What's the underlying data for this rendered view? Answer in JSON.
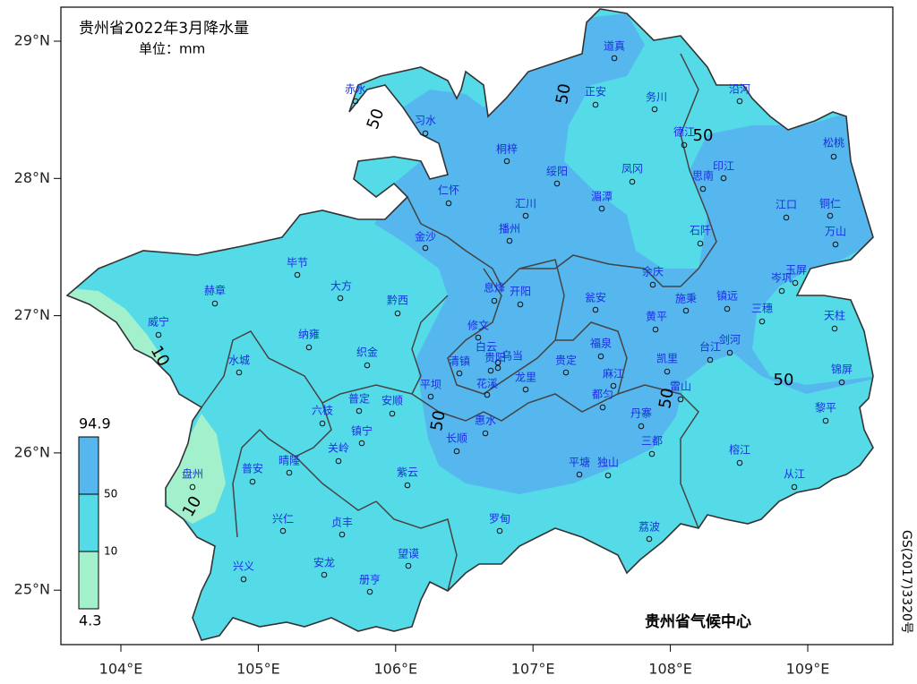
{
  "map": {
    "title": "贵州省2022年3月降水量",
    "unit": "单位：mm",
    "xticks": [
      {
        "value": 104,
        "label": "104°E"
      },
      {
        "value": 105,
        "label": "105°E"
      },
      {
        "value": 106,
        "label": "106°E"
      },
      {
        "value": 107,
        "label": "107°E"
      },
      {
        "value": 108,
        "label": "108°E"
      },
      {
        "value": 109,
        "label": "109°E"
      }
    ],
    "yticks": [
      {
        "value": 29,
        "label": "29°N"
      },
      {
        "value": 28,
        "label": "28°N"
      },
      {
        "value": 27,
        "label": "27°N"
      },
      {
        "value": 26,
        "label": "26°N"
      },
      {
        "value": 25,
        "label": "25°N"
      }
    ],
    "legend": {
      "levels": [
        94.9,
        50,
        10,
        4.3
      ],
      "colors": [
        "#56b6ee",
        "#55dbe8",
        "#a2f0cc"
      ]
    },
    "contour_labels": [
      50,
      50,
      50,
      50,
      50,
      50,
      10,
      10
    ],
    "stations": [
      "赤水",
      "习水",
      "桐梓",
      "道真",
      "正安",
      "务川",
      "沿河",
      "德江",
      "松桃",
      "印江",
      "思南",
      "凤冈",
      "绥阳",
      "湄潭",
      "仁怀",
      "汇川",
      "江口",
      "铜仁",
      "石阡",
      "万山",
      "播州",
      "金沙",
      "毕节",
      "大方",
      "赫章",
      "黔西",
      "息烽",
      "开阳",
      "余庆",
      "岑巩",
      "玉屏",
      "瓮安",
      "镇远",
      "施秉",
      "三穗",
      "黄平",
      "天柱",
      "威宁",
      "纳雍",
      "修文",
      "白云",
      "乌当",
      "织金",
      "福泉",
      "台江",
      "剑河",
      "清镇",
      "贵阳",
      "贵定",
      "凯里",
      "锦屏",
      "水城",
      "花溪",
      "龙里",
      "麻江",
      "雷山",
      "平坝",
      "都匀",
      "普定",
      "安顺",
      "六枝",
      "丹寨",
      "黎平",
      "惠水",
      "镇宁",
      "长顺",
      "关岭",
      "三都",
      "晴隆",
      "普安",
      "盘州",
      "紫云",
      "平塘",
      "独山",
      "榕江",
      "从江",
      "兴仁",
      "贞丰",
      "罗甸",
      "荔波",
      "望谟",
      "安龙",
      "兴义",
      "册亨"
    ],
    "credit": "贵州省气候中心",
    "approval": "GS(2017)3320号"
  }
}
